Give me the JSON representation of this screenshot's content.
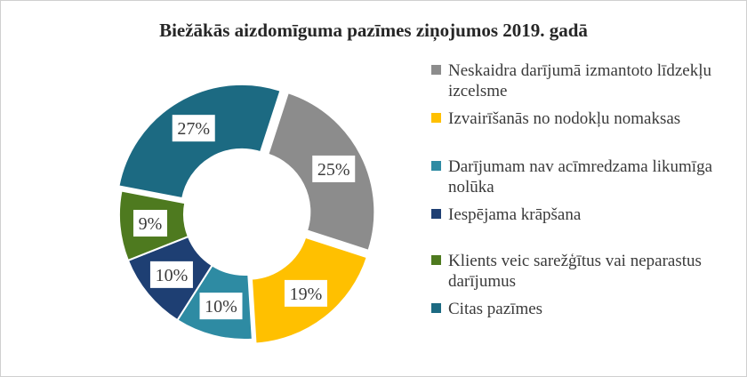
{
  "chart_data": {
    "type": "pie",
    "title": "Biežākās aizdomīguma pazīmes ziņojumos 2019. gadā",
    "legend_position": "right",
    "categories": [
      "Neskaidra darījumā izmantoto līdzekļu izcelsme",
      "Izvairīšanās no nodokļu nomaksas",
      "Darījumam nav acīmredzama likumīga nolūka",
      "Iespējama krāpšana",
      "Klients veic sarežģītus vai neparastus darījumus",
      "Citas pazīmes"
    ],
    "values": [
      25,
      19,
      10,
      10,
      9,
      27
    ],
    "data_labels": [
      "25%",
      "19%",
      "10%",
      "10%",
      "9%",
      "27%"
    ],
    "colors": [
      "#8c8c8c",
      "#ffc000",
      "#2e8ba3",
      "#1e3f73",
      "#4e7a1f",
      "#1c6a82"
    ]
  }
}
